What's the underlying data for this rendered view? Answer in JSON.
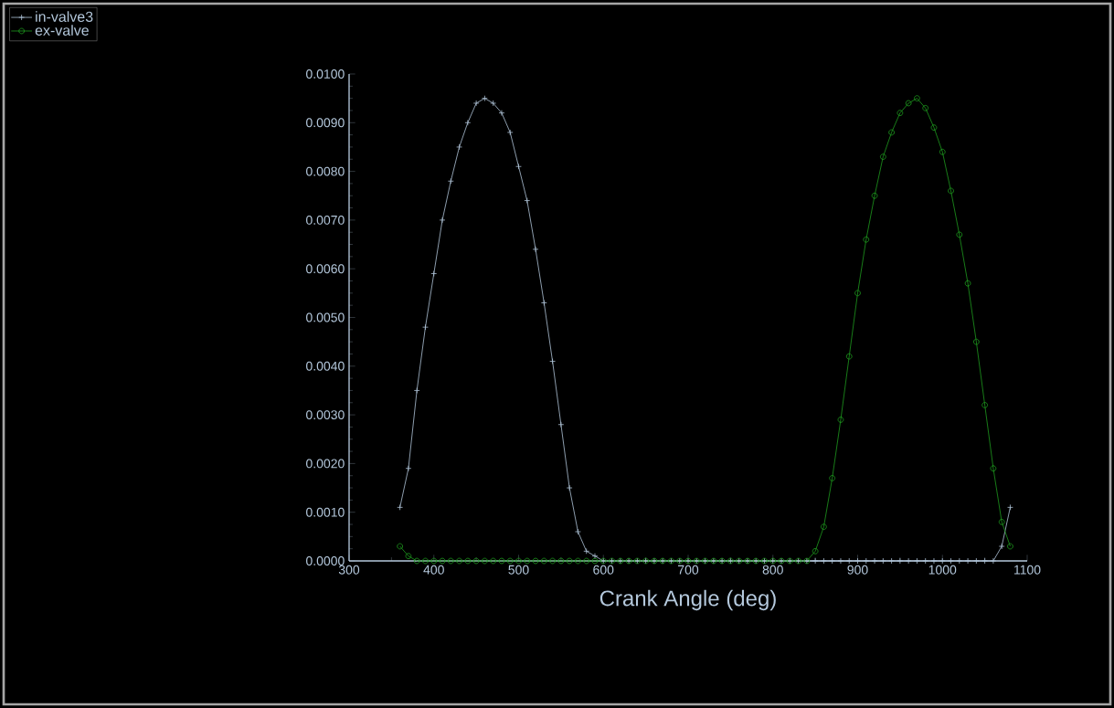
{
  "chart_data": {
    "type": "line",
    "xlabel": "Crank Angle (deg)",
    "legend": "top left",
    "x": [
      360,
      370,
      380,
      390,
      400,
      410,
      420,
      430,
      440,
      450,
      460,
      470,
      480,
      490,
      500,
      510,
      520,
      530,
      540,
      550,
      560,
      570,
      580,
      590,
      600,
      610,
      620,
      630,
      640,
      650,
      660,
      670,
      680,
      690,
      700,
      710,
      720,
      730,
      740,
      750,
      760,
      770,
      780,
      790,
      800,
      810,
      820,
      830,
      840,
      850,
      860,
      870,
      880,
      890,
      900,
      910,
      920,
      930,
      940,
      950,
      960,
      970,
      980,
      990,
      1000,
      1010,
      1020,
      1030,
      1040,
      1050,
      1060,
      1070,
      1080
    ],
    "series": [
      {
        "name": "in-valve3",
        "color": "#b0c4d8",
        "marker": "cross",
        "values": [
          0.0011,
          0.0019,
          0.0035,
          0.0048,
          0.0059,
          0.007,
          0.0078,
          0.0085,
          0.009,
          0.0094,
          0.0095,
          0.0094,
          0.0092,
          0.0088,
          0.0081,
          0.0074,
          0.0064,
          0.0053,
          0.0041,
          0.0028,
          0.0015,
          0.0006,
          0.0002,
          0.0001,
          0,
          0,
          0,
          0,
          0,
          0,
          0,
          0,
          0,
          0,
          0,
          0,
          0,
          0,
          0,
          0,
          0,
          0,
          0,
          0,
          0,
          0,
          0,
          0,
          0,
          0,
          0,
          0,
          0,
          0,
          0,
          0,
          0,
          0,
          0,
          0,
          0,
          0,
          0,
          0,
          0,
          0,
          0,
          0,
          0,
          0,
          0,
          0.0003,
          0.0011
        ]
      },
      {
        "name": "ex-valve",
        "color": "#1e9a1e",
        "marker": "circle",
        "values": [
          0.0003,
          0.0001,
          0,
          0,
          0,
          0,
          0,
          0,
          0,
          0,
          0,
          0,
          0,
          0,
          0,
          0,
          0,
          0,
          0,
          0,
          0,
          0,
          0,
          0,
          0,
          0,
          0,
          0,
          0,
          0,
          0,
          0,
          0,
          0,
          0,
          0,
          0,
          0,
          0,
          0,
          0,
          0,
          0,
          0,
          0,
          0,
          0,
          0,
          0,
          0.0002,
          0.0007,
          0.0017,
          0.0029,
          0.0042,
          0.0055,
          0.0066,
          0.0075,
          0.0083,
          0.0088,
          0.0092,
          0.0094,
          0.0095,
          0.0093,
          0.0089,
          0.0084,
          0.0076,
          0.0067,
          0.0057,
          0.0045,
          0.0032,
          0.0019,
          0.0008,
          0.0003
        ]
      }
    ],
    "xlim": [
      300,
      1100
    ],
    "xticks": [
      300,
      400,
      500,
      600,
      700,
      800,
      900,
      1000,
      1100
    ],
    "ylim": [
      0,
      0.01
    ],
    "yticks": [
      {
        "value": 0,
        "label": "0.0000"
      },
      {
        "value": 0.001,
        "label": "0.0010"
      },
      {
        "value": 0.002,
        "label": "0.0020"
      },
      {
        "value": 0.003,
        "label": "0.0030"
      },
      {
        "value": 0.004,
        "label": "0.0040"
      },
      {
        "value": 0.005,
        "label": "0.0050"
      },
      {
        "value": 0.006,
        "label": "0.0060"
      },
      {
        "value": 0.007,
        "label": "0.0070"
      },
      {
        "value": 0.008,
        "label": "0.0080"
      },
      {
        "value": 0.009,
        "label": "0.0090"
      },
      {
        "value": 0.01,
        "label": "0.0100"
      }
    ]
  }
}
